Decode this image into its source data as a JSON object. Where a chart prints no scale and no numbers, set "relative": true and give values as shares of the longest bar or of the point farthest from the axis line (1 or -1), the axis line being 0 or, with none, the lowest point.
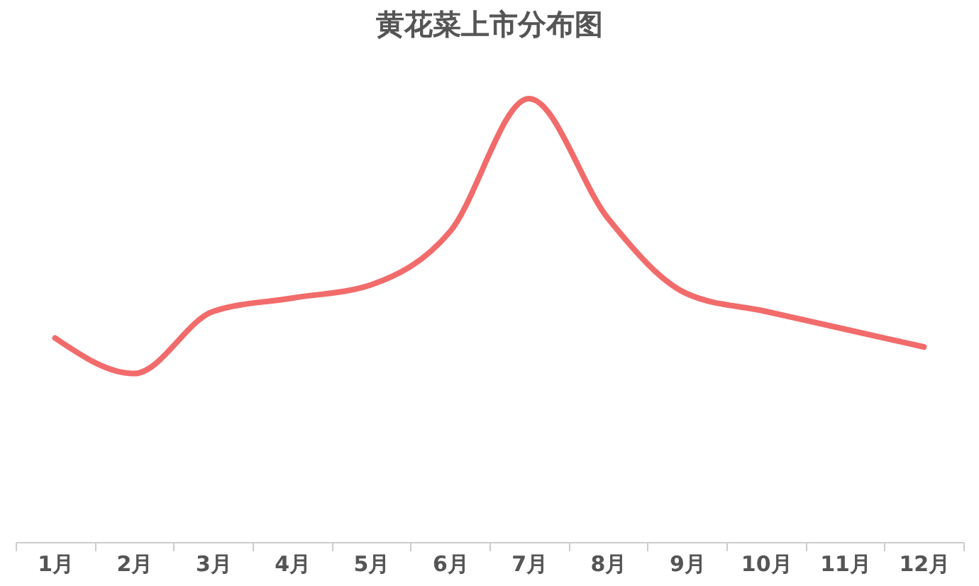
{
  "chart_data": {
    "type": "line",
    "title": "黄花菜上市分布图",
    "relative": true,
    "categories": [
      "1月",
      "2月",
      "3月",
      "4月",
      "5月",
      "6月",
      "7月",
      "8月",
      "9月",
      "10月",
      "11月",
      "12月"
    ],
    "series": [
      {
        "color": "#f26b6b",
        "values": [
          0.46,
          0.38,
          0.52,
          0.55,
          0.58,
          0.7,
          1,
          0.73,
          0.56,
          0.52,
          0.48,
          0.44
        ]
      }
    ],
    "grid": false,
    "marker": "none",
    "line_style": "solid"
  }
}
